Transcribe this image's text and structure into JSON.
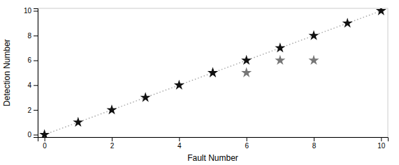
{
  "chart_data": {
    "type": "scatter",
    "xlabel": "Fault Number",
    "ylabel": "Detection Number",
    "xlim": [
      -0.2,
      10.2
    ],
    "ylim": [
      -0.2,
      10.2
    ],
    "xticks": [
      0,
      2,
      4,
      6,
      8,
      10
    ],
    "yticks": [
      0,
      2,
      4,
      6,
      8,
      10
    ],
    "series": [
      {
        "type": "line",
        "line_style": "dotted",
        "color": "#aaaaaa",
        "x": [
          0,
          10
        ],
        "values": [
          0,
          10
        ]
      },
      {
        "type": "scatter",
        "marker": "star",
        "color": "#777777",
        "x": [
          5,
          6,
          7,
          8
        ],
        "values": [
          5,
          5,
          6,
          6
        ]
      },
      {
        "type": "scatter",
        "marker": "star",
        "color": "#111111",
        "x": [
          0,
          1,
          2,
          3,
          4,
          5,
          6,
          7,
          8,
          9,
          10
        ],
        "values": [
          0,
          1,
          2,
          3,
          4,
          5,
          6,
          7,
          8,
          9,
          10
        ]
      }
    ]
  }
}
